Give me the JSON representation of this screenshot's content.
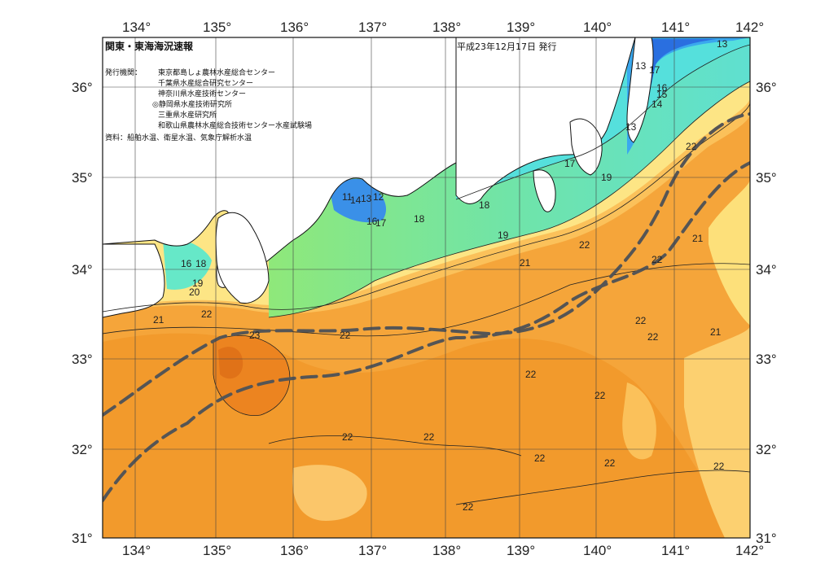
{
  "title": "関東・東海海況速報",
  "issued": "平成23年12月17日 発行",
  "issuer_label": "発行機関：",
  "issuers": [
    "東京都島しょ農林水産総合センター",
    "千葉県水産総合研究センター",
    "神奈川県水産技術センター",
    "◎静岡県水産技術研究所",
    "三重県水産研究所",
    "和歌山県農林水産総合技術センター水産試験場"
  ],
  "sources": "資料：船舶水温、衛星水温、気象庁解析水温",
  "lon_ticks": [
    "134°",
    "135°",
    "136°",
    "137°",
    "138°",
    "139°",
    "140°",
    "141°",
    "142°"
  ],
  "lat_ticks_left": [
    "36°",
    "35°",
    "34°",
    "33°",
    "32°",
    "31°"
  ],
  "lat_ticks_right": [
    "36°",
    "35°",
    "34°",
    "33°",
    "32°",
    "31°"
  ],
  "contour_labels": [
    {
      "t": "13"
    },
    {
      "t": "13"
    },
    {
      "t": "17"
    },
    {
      "t": "16"
    },
    {
      "t": "15"
    },
    {
      "t": "14"
    },
    {
      "t": "13"
    },
    {
      "t": "22"
    },
    {
      "t": "17"
    },
    {
      "t": "19"
    },
    {
      "t": "11"
    },
    {
      "t": "14"
    },
    {
      "t": "13"
    },
    {
      "t": "12"
    },
    {
      "t": "16"
    },
    {
      "t": "17"
    },
    {
      "t": "18"
    },
    {
      "t": "18"
    },
    {
      "t": "19"
    },
    {
      "t": "21"
    },
    {
      "t": "22"
    },
    {
      "t": "22"
    },
    {
      "t": "21"
    },
    {
      "t": "16"
    },
    {
      "t": "18"
    },
    {
      "t": "19"
    },
    {
      "t": "20"
    },
    {
      "t": "21"
    },
    {
      "t": "22"
    },
    {
      "t": "23"
    },
    {
      "t": "22"
    },
    {
      "t": "22"
    },
    {
      "t": "22"
    },
    {
      "t": "21"
    },
    {
      "t": "22"
    },
    {
      "t": "22"
    },
    {
      "t": "22"
    },
    {
      "t": "22"
    },
    {
      "t": "22"
    },
    {
      "t": "22"
    },
    {
      "t": "22"
    },
    {
      "t": "22"
    }
  ],
  "colors": {
    "warm_deep": "#f08a1e",
    "warm": "#f5a53a",
    "warm_light": "#fbc15a",
    "yellow": "#fde585",
    "green": "#79e06e",
    "aqua": "#66e8c8",
    "blue": "#2f8fe8",
    "kuroshio": "#555555"
  }
}
